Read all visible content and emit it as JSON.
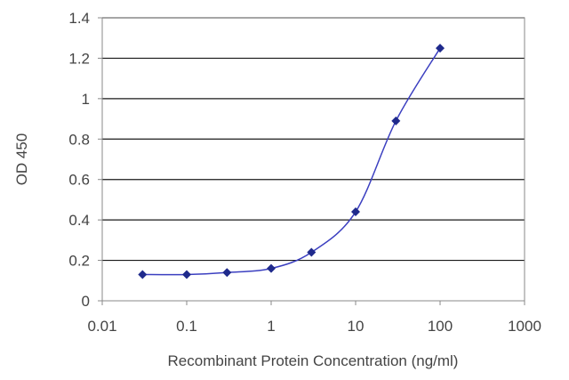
{
  "chart_data": {
    "type": "line",
    "title": "",
    "xlabel": "Recombinant Protein Concentration (ng/ml)",
    "ylabel": "OD 450",
    "x_scale": "log",
    "xlim": [
      0.01,
      1000
    ],
    "ylim": [
      0,
      1.4
    ],
    "x_ticks": [
      "0.01",
      "0.1",
      "1",
      "10",
      "100",
      "1000"
    ],
    "y_ticks": [
      "0",
      "0.2",
      "0.4",
      "0.6",
      "0.8",
      "1",
      "1.2",
      "1.4"
    ],
    "grid": "horizontal",
    "legend": "none",
    "series": [
      {
        "x": [
          0.03,
          0.1,
          0.3,
          1,
          3,
          10,
          30,
          100
        ],
        "y": [
          0.13,
          0.13,
          0.14,
          0.16,
          0.24,
          0.44,
          0.89,
          1.25
        ]
      }
    ],
    "colors": {
      "line": "#3b3fc0",
      "marker": "#1f2a8c",
      "grid": "#1a1a1a",
      "axis": "#888888",
      "text": "#444444"
    }
  }
}
